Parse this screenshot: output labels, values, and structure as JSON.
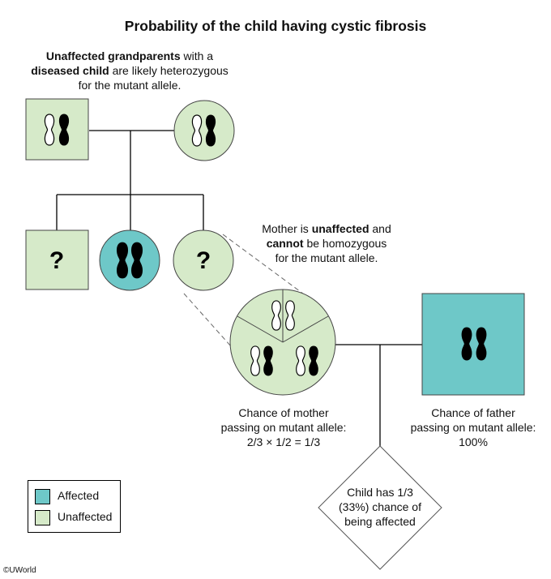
{
  "title": "Probability of the child having cystic fibrosis",
  "note_grandparents": {
    "bold1": "Unaffected grandparents",
    "plain1": " with a",
    "bold2": "diseased child",
    "plain2": " are likely heterozygous",
    "line3": "for the mutant allele."
  },
  "note_mother": {
    "plain1": "Mother is ",
    "bold1": "unaffected",
    "plain2": " and",
    "bold2": "cannot",
    "plain3": " be homozygous",
    "line3": "for the mutant allele."
  },
  "mother_chance": {
    "line1": "Chance of mother",
    "line2": "passing on mutant allele:",
    "line3": "2/3 × 1/2 = 1/3"
  },
  "father_chance": {
    "line1": "Chance of father",
    "line2": "passing on mutant allele:",
    "line3": "100%"
  },
  "child": {
    "line1": "Child has 1/3",
    "line2": "(33%) chance of",
    "line3": "being affected"
  },
  "unknown_mark": "?",
  "legend": {
    "affected": "Affected",
    "unaffected": "Unaffected"
  },
  "copyright": "©UWorld",
  "colors": {
    "affected": "#6ec8c8",
    "unaffected": "#d6eac9",
    "line": "#000000",
    "dash": "#666666"
  }
}
